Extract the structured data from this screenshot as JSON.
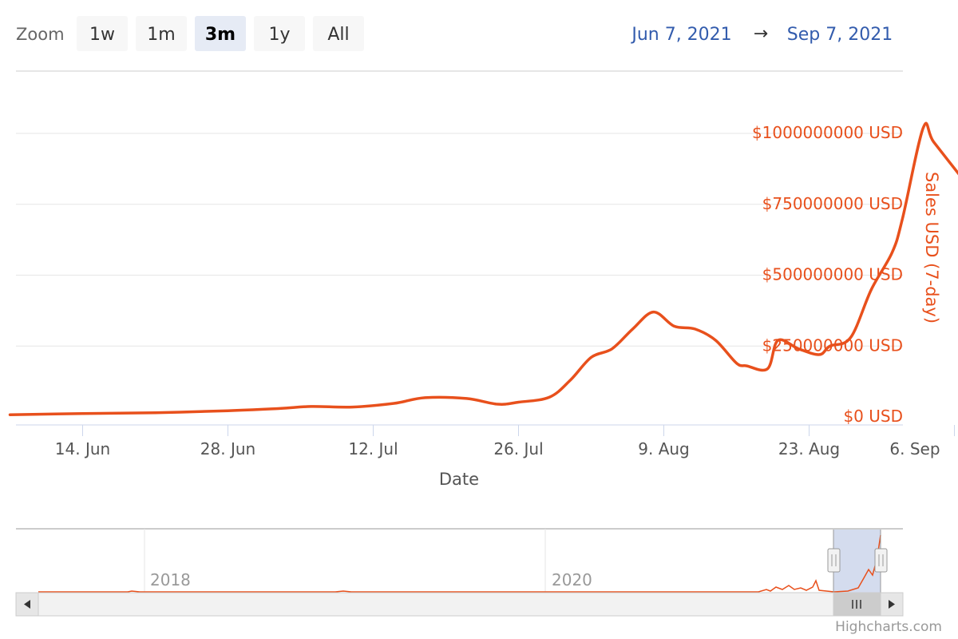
{
  "range_selector": {
    "zoom_label": "Zoom",
    "buttons": [
      "1w",
      "1m",
      "3m",
      "1y",
      "All"
    ],
    "selected": "3m",
    "from_date": "Jun 7, 2021",
    "arrow": "→",
    "to_date": "Sep 7, 2021"
  },
  "colors": {
    "series": "#e8501c",
    "grid": "#e6e6e6",
    "navigator_mask": "#ccd6eb",
    "button_bg": "#f7f7f7",
    "button_active_bg": "#e6ebf5",
    "date_text": "#335cad"
  },
  "chart_data": {
    "type": "line",
    "xlabel": "Date",
    "ylabel": "Sales USD (7-day)",
    "x_ticks": [
      "14. Jun",
      "28. Jun",
      "12. Jul",
      "26. Jul",
      "9. Aug",
      "23. Aug",
      "6. Sep"
    ],
    "y_ticks": [
      "$0 USD",
      "$250000000 USD",
      "$500000000 USD",
      "$750000000 USD",
      "$1000000000 USD"
    ],
    "ylim": [
      0,
      1000000000
    ],
    "xlim": [
      "2021-06-07",
      "2021-09-07"
    ],
    "grid": true,
    "series": [
      {
        "x": [
          "2021-06-07",
          "2021-06-14",
          "2021-06-21",
          "2021-06-28",
          "2021-07-03",
          "2021-07-06",
          "2021-07-10",
          "2021-07-14",
          "2021-07-17",
          "2021-07-21",
          "2021-07-24",
          "2021-07-26",
          "2021-07-29",
          "2021-07-31",
          "2021-08-02",
          "2021-08-04",
          "2021-08-06",
          "2021-08-08",
          "2021-08-10",
          "2021-08-12",
          "2021-08-14",
          "2021-08-16",
          "2021-08-17",
          "2021-08-19",
          "2021-08-20",
          "2021-08-22",
          "2021-08-24",
          "2021-08-25",
          "2021-08-27",
          "2021-08-29",
          "2021-08-31",
          "2021-09-01",
          "2021-09-03",
          "2021-09-04",
          "2021-09-07"
        ],
        "values": [
          8000000,
          12000000,
          15000000,
          22000000,
          30000000,
          37000000,
          35000000,
          48000000,
          68000000,
          65000000,
          45000000,
          52000000,
          70000000,
          130000000,
          210000000,
          240000000,
          310000000,
          370000000,
          320000000,
          310000000,
          270000000,
          190000000,
          180000000,
          170000000,
          270000000,
          240000000,
          220000000,
          250000000,
          280000000,
          450000000,
          580000000,
          700000000,
          1020000000,
          970000000,
          830000000
        ]
      }
    ]
  },
  "navigator": {
    "year_labels": [
      "2018",
      "2020"
    ],
    "scroll_left_icon": "arrow-left-icon",
    "scroll_right_icon": "arrow-right-icon",
    "grip_icon": "grip-icon"
  },
  "credits": "Highcharts.com"
}
